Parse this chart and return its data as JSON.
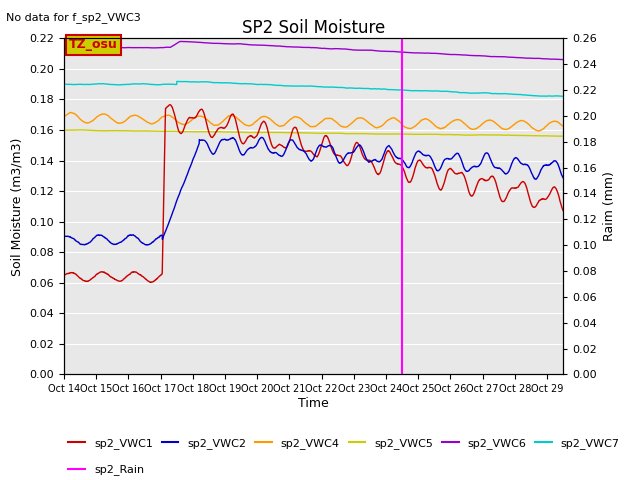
{
  "title": "SP2 Soil Moisture",
  "no_data_text": "No data for f_sp2_VWC3",
  "xlabel": "Time",
  "ylabel_left": "Soil Moisture (m3/m3)",
  "ylabel_right": "Raim (mm)",
  "ylim_left": [
    0.0,
    0.22
  ],
  "ylim_right": [
    0.0,
    0.26
  ],
  "fig_bg_color": "#ffffff",
  "plot_bg_color": "#e8e8e8",
  "grid_color": "#ffffff",
  "vertical_line_x": 10.5,
  "ticks_left": [
    0.0,
    0.02,
    0.04,
    0.06,
    0.08,
    0.1,
    0.12,
    0.14,
    0.16,
    0.18,
    0.2,
    0.22
  ],
  "ticks_right": [
    0.0,
    0.02,
    0.04,
    0.06,
    0.08,
    0.1,
    0.12,
    0.14,
    0.16,
    0.18,
    0.2,
    0.22,
    0.24,
    0.26
  ],
  "xtick_labels": [
    "Oct 14",
    "Oct 15",
    "Oct 16",
    "Oct 17",
    "Oct 18",
    "Oct 19",
    "Oct 20",
    "Oct 21",
    "Oct 22",
    "Oct 23",
    "Oct 24",
    "Oct 25",
    "Oct 26",
    "Oct 27",
    "Oct 28",
    "Oct 29"
  ],
  "vwc1_color": "#cc0000",
  "vwc2_color": "#0000cc",
  "vwc4_color": "#ff9900",
  "vwc5_color": "#cccc00",
  "vwc6_color": "#9900cc",
  "vwc7_color": "#00cccc",
  "rain_color": "#ff00ff",
  "tz_label": "TZ_osu",
  "tz_box_facecolor": "#cccc00",
  "tz_box_edgecolor": "#cc0000",
  "tz_text_color": "#cc0000"
}
